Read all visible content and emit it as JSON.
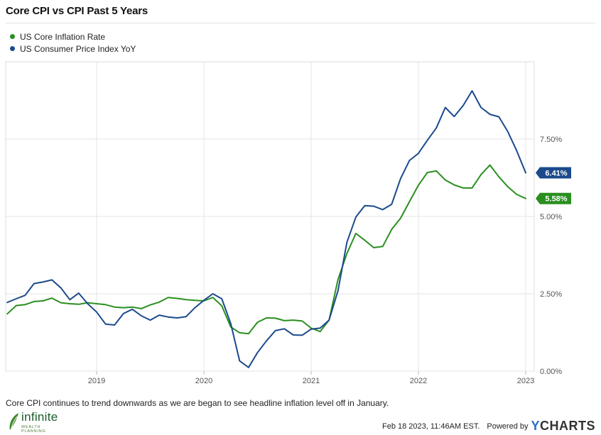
{
  "header": {
    "title": "Core CPI vs CPI Past 5 Years"
  },
  "caption": "Core CPI continues to trend downwards as we are began to see headline inflation level off in January.",
  "footer": {
    "timestamp": "Feb 18 2023, 11:46AM EST.",
    "powered_by": "Powered by",
    "brand_y": "Y",
    "brand_rest": "CHARTS"
  },
  "logo": {
    "name": "infinite",
    "tagline": "WEALTH PLANNING"
  },
  "colors": {
    "core": "#2a8f1f",
    "cpi": "#1b4a8c",
    "grid": "#e6e6e6"
  },
  "chart_data": {
    "type": "line",
    "title": "Core CPI vs CPI Past 5 Years",
    "xlabel": "",
    "ylabel": "",
    "ylim": [
      0,
      10
    ],
    "x_ticks": [
      "2019",
      "2020",
      "2021",
      "2022",
      "2023"
    ],
    "y_ticks": [
      "0.00%",
      "2.50%",
      "5.00%",
      "7.50%"
    ],
    "legend_position": "top-left",
    "grid": true,
    "x": [
      "2018-03",
      "2018-04",
      "2018-05",
      "2018-06",
      "2018-07",
      "2018-08",
      "2018-09",
      "2018-10",
      "2018-11",
      "2018-12",
      "2019-01",
      "2019-02",
      "2019-03",
      "2019-04",
      "2019-05",
      "2019-06",
      "2019-07",
      "2019-08",
      "2019-09",
      "2019-10",
      "2019-11",
      "2019-12",
      "2020-01",
      "2020-02",
      "2020-03",
      "2020-04",
      "2020-05",
      "2020-06",
      "2020-07",
      "2020-08",
      "2020-09",
      "2020-10",
      "2020-11",
      "2020-12",
      "2021-01",
      "2021-02",
      "2021-03",
      "2021-04",
      "2021-05",
      "2021-06",
      "2021-07",
      "2021-08",
      "2021-09",
      "2021-10",
      "2021-11",
      "2021-12",
      "2022-01",
      "2022-02",
      "2022-03",
      "2022-04",
      "2022-05",
      "2022-06",
      "2022-07",
      "2022-08",
      "2022-09",
      "2022-10",
      "2022-11",
      "2022-12",
      "2023-01"
    ],
    "series": [
      {
        "name": "US Core Inflation Rate",
        "color": "#2a8f1f",
        "last_label": "5.58%",
        "values": [
          1.85,
          2.12,
          2.15,
          2.25,
          2.27,
          2.36,
          2.21,
          2.18,
          2.16,
          2.21,
          2.18,
          2.15,
          2.07,
          2.05,
          2.07,
          2.02,
          2.14,
          2.23,
          2.38,
          2.35,
          2.31,
          2.29,
          2.27,
          2.38,
          2.11,
          1.43,
          1.24,
          1.21,
          1.58,
          1.72,
          1.71,
          1.63,
          1.65,
          1.62,
          1.39,
          1.28,
          1.65,
          2.96,
          3.8,
          4.45,
          4.23,
          3.99,
          4.03,
          4.58,
          4.94,
          5.48,
          6.01,
          6.42,
          6.47,
          6.18,
          6.02,
          5.92,
          5.92,
          6.35,
          6.66,
          6.28,
          5.96,
          5.71,
          5.58
        ]
      },
      {
        "name": "US Consumer Price Index YoY",
        "color": "#1b4a8c",
        "last_label": "6.41%",
        "values": [
          2.22,
          2.34,
          2.45,
          2.83,
          2.88,
          2.95,
          2.69,
          2.31,
          2.52,
          2.18,
          1.91,
          1.52,
          1.49,
          1.86,
          2.0,
          1.79,
          1.65,
          1.81,
          1.75,
          1.72,
          1.76,
          2.05,
          2.29,
          2.5,
          2.34,
          1.54,
          0.33,
          0.12,
          0.6,
          0.98,
          1.31,
          1.37,
          1.17,
          1.16,
          1.36,
          1.39,
          1.65,
          2.6,
          4.16,
          4.98,
          5.35,
          5.33,
          5.22,
          5.39,
          6.22,
          6.81,
          7.04,
          7.46,
          7.86,
          8.52,
          8.23,
          8.58,
          9.06,
          8.52,
          8.3,
          8.22,
          7.74,
          7.12,
          6.41
        ]
      }
    ]
  }
}
